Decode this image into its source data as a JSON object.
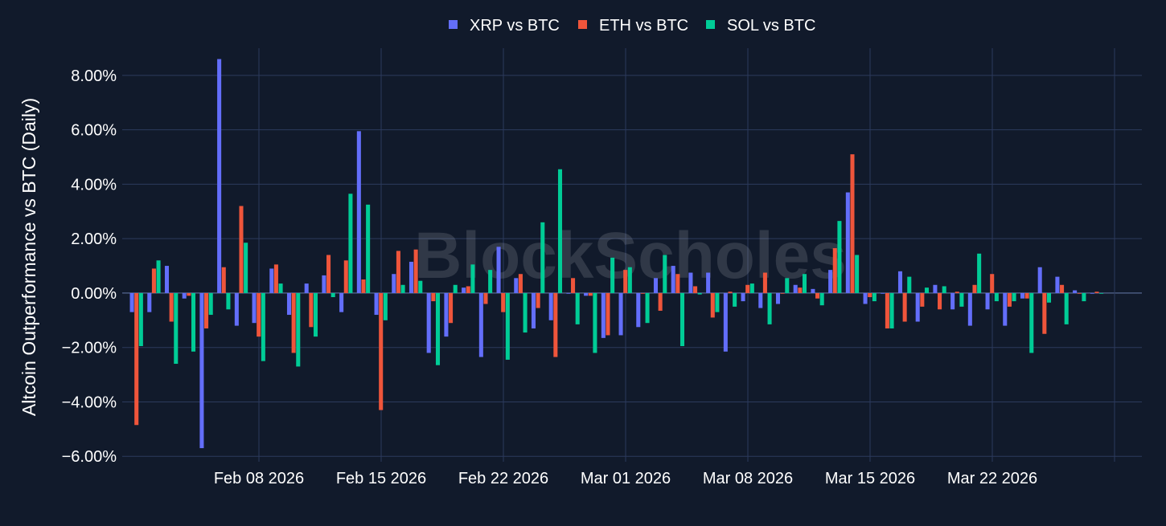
{
  "chart_data": {
    "type": "bar",
    "ylabel": "Altcoin Outperformance vs BTC (Daily)",
    "ylim": [
      -6.2,
      9.0
    ],
    "y_ticks": [
      -6,
      -4,
      -2,
      0,
      2,
      4,
      6,
      8
    ],
    "y_tick_labels": [
      "−6.00%",
      "−4.00%",
      "−2.00%",
      "0.00%",
      "2.00%",
      "4.00%",
      "6.00%",
      "8.00%"
    ],
    "x_ticks": [
      {
        "date": "2026-02-08",
        "label": "Feb 08 2026"
      },
      {
        "date": "2026-02-15",
        "label": "Feb 15 2026"
      },
      {
        "date": "2026-02-22",
        "label": "Feb 22 2026"
      },
      {
        "date": "2026-03-01",
        "label": "Mar 01 2026"
      },
      {
        "date": "2026-03-08",
        "label": "Mar 08 2026"
      },
      {
        "date": "2026-03-15",
        "label": "Mar 15 2026"
      },
      {
        "date": "2026-03-22",
        "label": "Mar 22 2026"
      },
      {
        "date": "2026-03-29",
        "label": ""
      }
    ],
    "xlim": [
      "2026-02-01",
      "2026-03-29"
    ],
    "grid": true,
    "legend_position": "top-center",
    "watermark": "BlockScholes",
    "categories": [
      "2026-02-01",
      "2026-02-02",
      "2026-02-03",
      "2026-02-04",
      "2026-02-05",
      "2026-02-06",
      "2026-02-07",
      "2026-02-08",
      "2026-02-09",
      "2026-02-10",
      "2026-02-11",
      "2026-02-12",
      "2026-02-13",
      "2026-02-14",
      "2026-02-15",
      "2026-02-16",
      "2026-02-17",
      "2026-02-18",
      "2026-02-19",
      "2026-02-20",
      "2026-02-21",
      "2026-02-22",
      "2026-02-23",
      "2026-02-24",
      "2026-02-25",
      "2026-02-26",
      "2026-02-27",
      "2026-02-28",
      "2026-03-01",
      "2026-03-02",
      "2026-03-03",
      "2026-03-04",
      "2026-03-05",
      "2026-03-06",
      "2026-03-07",
      "2026-03-08",
      "2026-03-09",
      "2026-03-10",
      "2026-03-11",
      "2026-03-12",
      "2026-03-13",
      "2026-03-14",
      "2026-03-15",
      "2026-03-16",
      "2026-03-17",
      "2026-03-18",
      "2026-03-19",
      "2026-03-20",
      "2026-03-21",
      "2026-03-22",
      "2026-03-23",
      "2026-03-24",
      "2026-03-25",
      "2026-03-26",
      "2026-03-27",
      "2026-03-28"
    ],
    "series": [
      {
        "name": "XRP vs BTC",
        "color": "#636efa",
        "values": [
          -0.7,
          -0.7,
          1.0,
          -0.2,
          -5.7,
          8.6,
          -1.2,
          -1.1,
          0.9,
          -0.8,
          0.35,
          0.65,
          -0.7,
          5.95,
          -0.8,
          0.7,
          1.15,
          -2.2,
          -1.6,
          0.2,
          -2.35,
          1.7,
          0.55,
          -1.3,
          -1.0,
          0.0,
          -0.1,
          -1.65,
          -1.55,
          -1.25,
          0.55,
          1.0,
          0.75,
          0.75,
          -2.15,
          -0.3,
          -0.55,
          -0.4,
          0.3,
          0.15,
          0.85,
          3.7,
          -0.4,
          0.0,
          0.8,
          -1.05,
          0.3,
          -0.6,
          -1.2,
          -0.6,
          -1.2,
          -0.2,
          0.95,
          0.6,
          0.1,
          0.0
        ]
      },
      {
        "name": "ETH vs BTC",
        "color": "#ef553b",
        "values": [
          -4.85,
          0.9,
          -1.05,
          -0.1,
          -1.3,
          0.95,
          3.2,
          -1.6,
          1.05,
          -2.2,
          -1.25,
          1.4,
          1.2,
          0.5,
          -4.3,
          1.55,
          1.6,
          -0.3,
          -1.1,
          0.25,
          -0.4,
          -0.7,
          0.7,
          -0.55,
          -2.35,
          0.55,
          -0.1,
          -1.55,
          0.85,
          0.0,
          -0.65,
          0.7,
          0.25,
          -0.9,
          0.05,
          0.3,
          0.75,
          0.0,
          0.2,
          -0.2,
          1.65,
          5.1,
          -0.15,
          -1.3,
          -1.05,
          -0.5,
          -0.6,
          0.05,
          0.3,
          0.7,
          -0.5,
          -0.2,
          -1.5,
          0.3,
          0.0,
          0.05
        ]
      },
      {
        "name": "SOL vs BTC",
        "color": "#00cc96",
        "values": [
          -1.95,
          1.2,
          -2.6,
          -2.15,
          -0.8,
          -0.6,
          1.85,
          -2.5,
          0.35,
          -2.7,
          -1.6,
          -0.15,
          3.65,
          3.25,
          -1.0,
          0.3,
          0.45,
          -2.65,
          0.3,
          1.05,
          0.85,
          -2.45,
          -1.45,
          2.6,
          4.55,
          -1.15,
          -2.2,
          1.3,
          0.95,
          -1.1,
          1.4,
          -1.95,
          -0.05,
          -0.7,
          -0.5,
          0.35,
          -1.15,
          0.55,
          0.7,
          -0.45,
          2.65,
          1.4,
          -0.3,
          -1.3,
          0.6,
          0.2,
          0.25,
          -0.5,
          1.45,
          -0.3,
          -0.3,
          -2.2,
          -0.35,
          -1.15,
          -0.3,
          0.0
        ]
      }
    ]
  }
}
